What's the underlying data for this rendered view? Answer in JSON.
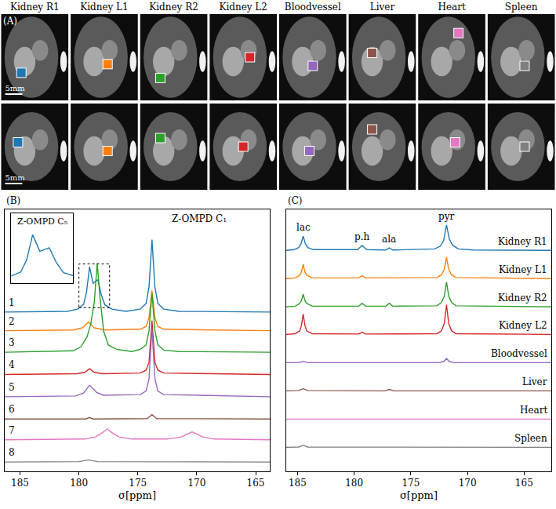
{
  "panel_a": {
    "letter": "(A)",
    "scale_bar": "5mm",
    "titles": [
      "Kidney R1",
      "Kidney L1",
      "Kidney R2",
      "Kidney L2",
      "Bloodvessel",
      "Liver",
      "Heart",
      "Spleen"
    ],
    "colors": [
      "#1f77b4",
      "#ff7f0e",
      "#2ca02c",
      "#d62728",
      "#9467bd",
      "#8c564b",
      "#e377c2",
      "#7f7f7f"
    ]
  },
  "chart_data": [
    {
      "panel": "(B)",
      "type": "line",
      "x_label": "σ[ppm]",
      "xlim": [
        186.3,
        163.8
      ],
      "xticks": [
        185,
        180,
        175,
        170,
        165
      ],
      "ylim": [
        0,
        36.5
      ],
      "tick_labels": "x",
      "grid": false,
      "annotations": [
        {
          "text": "Z-OMPD C₁",
          "x": 169.8,
          "y": 35.2
        }
      ],
      "inset": {
        "title": "Z-OMPD C₅",
        "xlim": [
          180.0,
          177.4
        ],
        "ylim": [
          21.8,
          31.5
        ]
      },
      "series": [
        {
          "name": "1",
          "color": "#1f77b4",
          "x": [
            186.3,
            181,
            180.1,
            179.6,
            179.35,
            179.1,
            178.8,
            178.4,
            178.1,
            177.8,
            177.2,
            176,
            174.8,
            174.3,
            174.05,
            173.8,
            173.55,
            173.3,
            172.8,
            171.5,
            163.8
          ],
          "values": [
            22.2,
            22.3,
            22.6,
            23.3,
            25.0,
            28.5,
            26.2,
            26.7,
            24.6,
            23.2,
            22.6,
            22.3,
            22.6,
            23.4,
            25.7,
            32.3,
            25.7,
            23.4,
            22.6,
            22.3,
            22.2
          ]
        },
        {
          "name": "2",
          "color": "#ff7f0e",
          "x": [
            186.3,
            180.5,
            179.7,
            179.45,
            179.2,
            178.95,
            178.7,
            177.8,
            174.8,
            174.3,
            174.05,
            173.8,
            173.55,
            173.3,
            172.8,
            163.8
          ],
          "values": [
            19.6,
            19.7,
            20.0,
            20.4,
            20.8,
            20.4,
            20.0,
            19.7,
            19.8,
            20.2,
            21.4,
            25.2,
            21.4,
            20.2,
            19.8,
            19.6
          ]
        },
        {
          "name": "3",
          "color": "#2ca02c",
          "x": [
            186.3,
            180.5,
            179.8,
            179.3,
            179.0,
            178.7,
            178.45,
            178.2,
            177.9,
            177.5,
            176.8,
            175.5,
            174.8,
            174.3,
            174.05,
            173.8,
            173.55,
            173.3,
            172.8,
            171.5,
            163.8
          ],
          "values": [
            16.6,
            16.8,
            17.4,
            18.8,
            20.5,
            23.5,
            29.0,
            24.0,
            19.5,
            17.6,
            17.0,
            16.7,
            17.0,
            17.6,
            19.6,
            24.8,
            19.6,
            17.6,
            16.9,
            16.7,
            16.6
          ]
        },
        {
          "name": "4",
          "color": "#d62728",
          "x": [
            186.3,
            180.2,
            179.5,
            179.1,
            178.7,
            178.0,
            174.8,
            174.3,
            174.05,
            173.8,
            173.55,
            173.3,
            172.8,
            163.8
          ],
          "values": [
            13.5,
            13.6,
            13.8,
            14.3,
            13.8,
            13.6,
            13.7,
            14.1,
            15.2,
            21.0,
            15.2,
            14.1,
            13.7,
            13.5
          ]
        },
        {
          "name": "5",
          "color": "#9467bd",
          "x": [
            186.3,
            180.3,
            179.6,
            179.3,
            179.1,
            178.9,
            178.5,
            177.9,
            174.8,
            174.3,
            174.05,
            173.8,
            173.55,
            173.3,
            172.8,
            163.8
          ],
          "values": [
            10.4,
            10.5,
            10.9,
            11.5,
            12.0,
            11.7,
            11.0,
            10.6,
            10.7,
            11.2,
            12.9,
            19.8,
            12.9,
            11.2,
            10.7,
            10.4
          ]
        },
        {
          "name": "6",
          "color": "#8c564b",
          "x": [
            186.3,
            179.4,
            179.1,
            178.8,
            174.2,
            173.8,
            173.4,
            163.8
          ],
          "values": [
            7.3,
            7.3,
            7.5,
            7.3,
            7.35,
            7.9,
            7.35,
            7.3
          ]
        },
        {
          "name": "7",
          "color": "#e377c2",
          "x": [
            186.3,
            179.5,
            178.6,
            178.0,
            177.6,
            177.2,
            176.6,
            175.5,
            172.5,
            171.3,
            170.8,
            170.4,
            170.0,
            169.5,
            168.5,
            163.8
          ],
          "values": [
            4.4,
            4.5,
            4.8,
            5.4,
            5.9,
            5.4,
            4.8,
            4.5,
            4.5,
            4.8,
            5.2,
            5.5,
            5.2,
            4.8,
            4.5,
            4.4
          ]
        },
        {
          "name": "8",
          "color": "#7f7f7f",
          "x": [
            186.3,
            180,
            179.2,
            178.4,
            163.8
          ],
          "values": [
            1.3,
            1.35,
            1.6,
            1.35,
            1.3
          ]
        }
      ]
    },
    {
      "panel": "(C)",
      "type": "line",
      "x_label": "σ[ppm]",
      "xlim": [
        186,
        162.6
      ],
      "xticks": [
        185,
        180,
        175,
        170,
        165
      ],
      "ylim": [
        0.9,
        38
      ],
      "tick_labels": "x",
      "grid": false,
      "peak_labels": [
        {
          "text": "lac",
          "x": 184.5
        },
        {
          "text": "p.h",
          "x": 179.3
        },
        {
          "text": "ala",
          "x": 176.9
        },
        {
          "text": "pyr",
          "x": 171.85
        }
      ],
      "series": [
        {
          "name": "Kidney R1",
          "color": "#1f77b4",
          "x": [
            186,
            185.3,
            184.9,
            184.7,
            184.5,
            184.3,
            184.1,
            183.6,
            179.7,
            179.3,
            178.9,
            177.2,
            176.9,
            176.6,
            172.9,
            172.4,
            172.1,
            171.85,
            171.6,
            171.3,
            170.8,
            169.5,
            162.6
          ],
          "values": [
            32.2,
            32.3,
            32.6,
            33.1,
            34.2,
            33.1,
            32.6,
            32.3,
            32.3,
            32.9,
            32.3,
            32.25,
            32.55,
            32.25,
            32.4,
            32.8,
            33.6,
            35.8,
            33.8,
            32.9,
            32.4,
            32.25,
            32.2
          ]
        },
        {
          "name": "Kidney L1",
          "color": "#ff7f0e",
          "x": [
            186,
            185.2,
            184.8,
            184.65,
            184.5,
            184.35,
            184.2,
            183.7,
            179.6,
            179.3,
            179.0,
            172.7,
            172.3,
            172.05,
            171.85,
            171.65,
            171.4,
            171.0,
            162.6
          ],
          "values": [
            28.2,
            28.3,
            28.7,
            29.2,
            30.2,
            29.2,
            28.7,
            28.3,
            28.3,
            28.6,
            28.3,
            28.35,
            28.7,
            29.5,
            31.2,
            29.5,
            28.7,
            28.35,
            28.2
          ]
        },
        {
          "name": "Kidney R2",
          "color": "#2ca02c",
          "x": [
            186,
            185.2,
            184.8,
            184.65,
            184.5,
            184.35,
            184.2,
            183.7,
            179.6,
            179.3,
            179.0,
            177.2,
            176.9,
            176.6,
            172.7,
            172.3,
            172.05,
            171.85,
            171.65,
            171.4,
            171.0,
            162.6
          ],
          "values": [
            24.2,
            24.3,
            24.7,
            25.1,
            26.0,
            25.1,
            24.7,
            24.3,
            24.3,
            24.7,
            24.3,
            24.3,
            24.7,
            24.3,
            24.35,
            24.8,
            25.7,
            27.7,
            25.7,
            24.8,
            24.35,
            24.2
          ]
        },
        {
          "name": "Kidney L2",
          "color": "#d62728",
          "x": [
            186,
            185.2,
            184.8,
            184.65,
            184.5,
            184.35,
            184.2,
            183.7,
            179.6,
            179.3,
            179.0,
            172.7,
            172.3,
            172.05,
            171.85,
            171.65,
            171.4,
            171.0,
            162.6
          ],
          "values": [
            20.3,
            20.4,
            20.8,
            21.6,
            23.2,
            21.6,
            20.8,
            20.4,
            20.35,
            20.6,
            20.35,
            20.4,
            20.8,
            21.8,
            24.5,
            21.8,
            20.8,
            20.4,
            20.3
          ]
        },
        {
          "name": "Bloodvessel",
          "color": "#9467bd",
          "x": [
            186,
            184.9,
            184.5,
            184.1,
            172.5,
            172.1,
            171.85,
            171.6,
            171.2,
            162.6
          ],
          "values": [
            16.3,
            16.3,
            16.45,
            16.3,
            16.3,
            16.45,
            16.9,
            16.45,
            16.3,
            16.3
          ]
        },
        {
          "name": "Liver",
          "color": "#8c564b",
          "x": [
            186,
            184.9,
            184.5,
            184.1,
            177.3,
            176.9,
            176.5,
            162.6
          ],
          "values": [
            12.3,
            12.35,
            12.6,
            12.35,
            12.3,
            12.5,
            12.3,
            12.3
          ]
        },
        {
          "name": "Heart",
          "color": "#e377c2",
          "x": [
            186,
            162.6
          ],
          "values": [
            8.3,
            8.3
          ]
        },
        {
          "name": "Spleen",
          "color": "#7f7f7f",
          "x": [
            186,
            184.9,
            184.5,
            184.1,
            162.6
          ],
          "values": [
            4.3,
            4.35,
            4.6,
            4.35,
            4.3
          ]
        }
      ]
    }
  ]
}
